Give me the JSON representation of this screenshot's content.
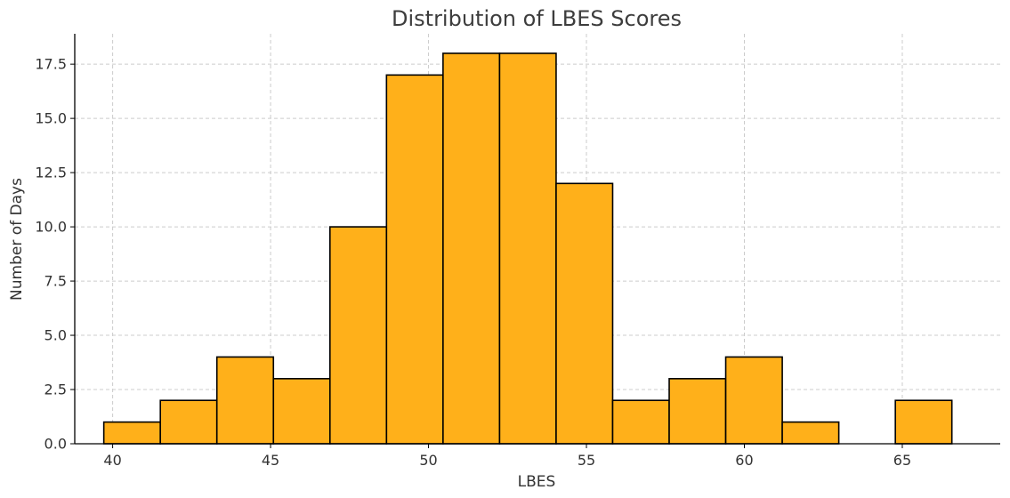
{
  "chart_data": {
    "type": "bar",
    "title": "Distribution of LBES Scores",
    "xlabel": "LBES",
    "ylabel": "Number of Days",
    "bin_edges": [
      39.72,
      41.51,
      43.3,
      45.09,
      46.88,
      48.67,
      50.46,
      52.25,
      54.04,
      55.83,
      57.62,
      59.41,
      61.2,
      62.99,
      64.78,
      66.57
    ],
    "values": [
      1,
      2,
      4,
      3,
      10,
      17,
      18,
      18,
      12,
      2,
      3,
      4,
      1,
      0,
      2
    ],
    "xlim": [
      38.8,
      68.1
    ],
    "ylim": [
      0,
      18.9
    ],
    "x_ticks": [
      40,
      45,
      50,
      55,
      60,
      65
    ],
    "y_ticks": [
      0.0,
      2.5,
      5.0,
      7.5,
      10.0,
      12.5,
      15.0,
      17.5
    ],
    "x_tick_labels": [
      "40",
      "45",
      "50",
      "55",
      "60",
      "65"
    ],
    "y_tick_labels": [
      "0.0",
      "2.5",
      "5.0",
      "7.5",
      "10.0",
      "12.5",
      "15.0",
      "17.5"
    ],
    "grid": true,
    "bar_color": "#FFB01A",
    "edge_color": "#000000"
  }
}
